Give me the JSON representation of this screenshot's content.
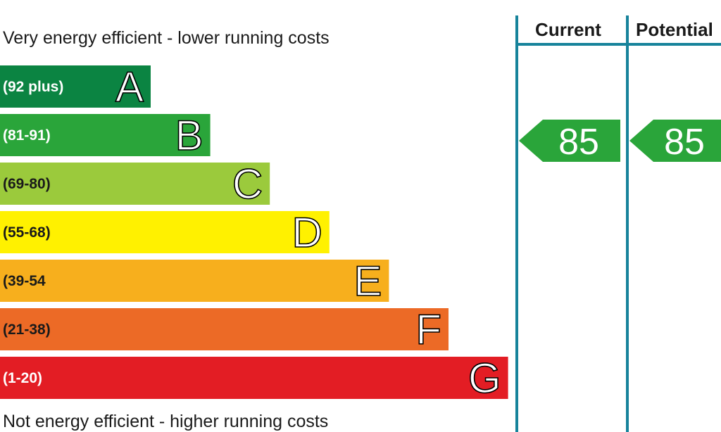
{
  "captions": {
    "top": "Very energy efficient - lower running costs",
    "bottom": "Not energy efficient - higher running costs"
  },
  "columns": {
    "current": "Current",
    "potential": "Potential"
  },
  "chart_data": {
    "type": "bar",
    "categories": [
      "A",
      "B",
      "C",
      "D",
      "E",
      "F",
      "G"
    ],
    "ranges": [
      "(92 plus)",
      "(81-91)",
      "(69-80)",
      "(55-68)",
      "(39-54",
      "(21-38)",
      "(1-20)"
    ],
    "colors": [
      "#0b8442",
      "#2aa53a",
      "#9bca3c",
      "#fff100",
      "#f7af1d",
      "#ec6a26",
      "#e31d24"
    ],
    "range_text_colors": [
      "#ffffff",
      "#ffffff",
      "#1a1a1a",
      "#1a1a1a",
      "#1a1a1a",
      "#1a1a1a",
      "#ffffff"
    ],
    "current": {
      "value": 85,
      "band": "B"
    },
    "potential": {
      "value": 85,
      "band": "B"
    },
    "arrow_color": "#2aa53a",
    "divider_color": "#17839b"
  }
}
